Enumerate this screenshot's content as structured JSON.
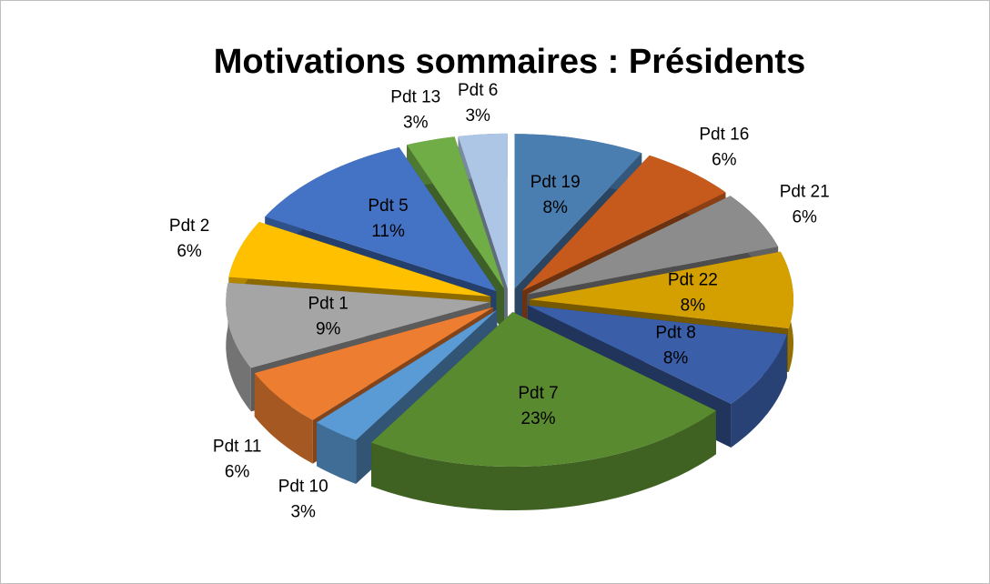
{
  "chart_data": {
    "type": "pie3d",
    "title": "Motivations sommaires : Présidents",
    "categories": [
      "Pdt 19",
      "Pdt 16",
      "Pdt 21",
      "Pdt 22",
      "Pdt 8",
      "Pdt 7",
      "Pdt 10",
      "Pdt 11",
      "Pdt 1",
      "Pdt 2",
      "Pdt 5",
      "Pdt 13",
      "Pdt 6"
    ],
    "values": [
      8,
      6,
      6,
      8,
      8,
      23,
      3,
      6,
      9,
      6,
      11,
      3,
      3
    ],
    "value_labels": [
      "8%",
      "6%",
      "6%",
      "8%",
      "8%",
      "23%",
      "3%",
      "6%",
      "9%",
      "6%",
      "11%",
      "3%",
      "3%"
    ],
    "colors": [
      "#4a7eb1",
      "#c55a1c",
      "#8c8c8c",
      "#d4a000",
      "#3a5ea8",
      "#5a8a30",
      "#5b9bd5",
      "#ed7d31",
      "#a5a5a5",
      "#ffc000",
      "#4472c4",
      "#70ad47",
      "#adc6e6"
    ]
  }
}
